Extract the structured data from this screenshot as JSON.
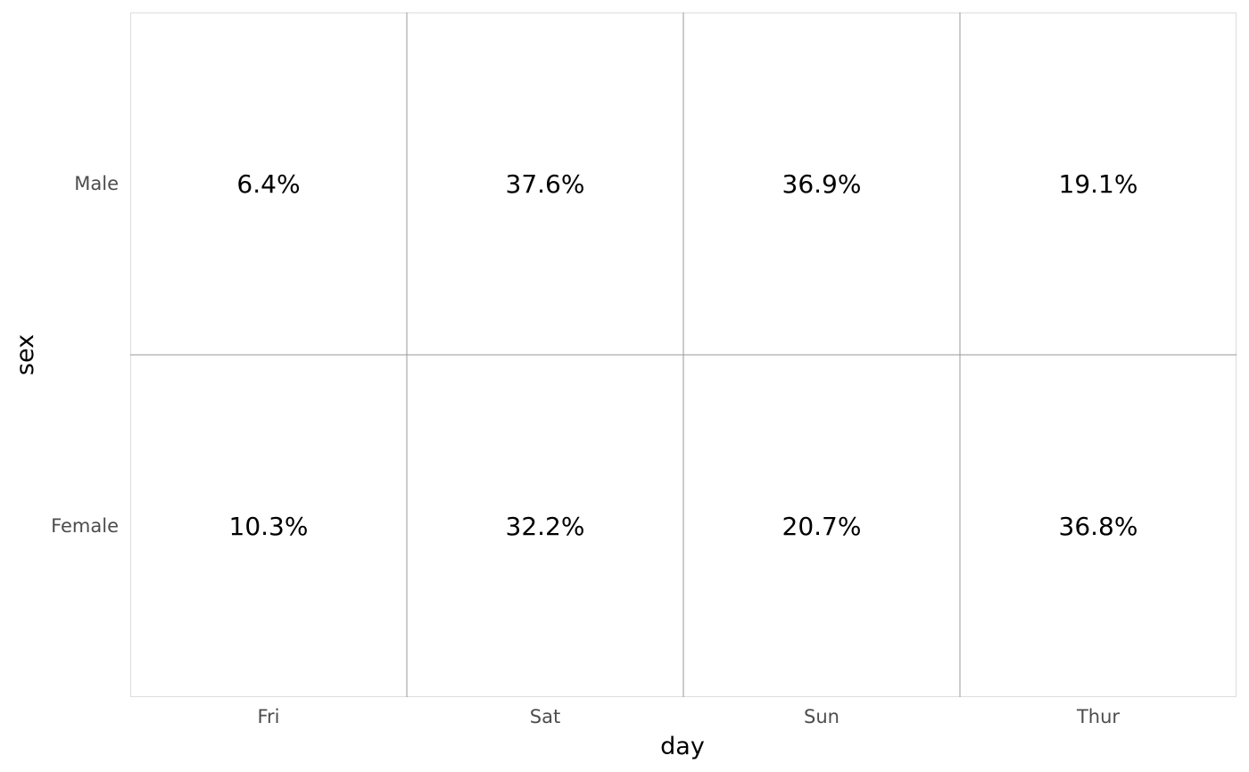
{
  "chart_data": {
    "type": "table",
    "x_categories": [
      "Fri",
      "Sat",
      "Sun",
      "Thur"
    ],
    "y_categories": [
      "Male",
      "Female"
    ],
    "xlabel": "day",
    "ylabel": "sex",
    "cells": [
      {
        "x": "Fri",
        "y": "Male",
        "label": "6.4%",
        "value": 6.4
      },
      {
        "x": "Sat",
        "y": "Male",
        "label": "37.6%",
        "value": 37.6
      },
      {
        "x": "Sun",
        "y": "Male",
        "label": "36.9%",
        "value": 36.9
      },
      {
        "x": "Thur",
        "y": "Male",
        "label": "19.1%",
        "value": 19.1
      },
      {
        "x": "Fri",
        "y": "Female",
        "label": "10.3%",
        "value": 10.3
      },
      {
        "x": "Sat",
        "y": "Female",
        "label": "32.2%",
        "value": 32.2
      },
      {
        "x": "Sun",
        "y": "Female",
        "label": "20.7%",
        "value": 20.7
      },
      {
        "x": "Thur",
        "y": "Female",
        "label": "36.8%",
        "value": 36.8
      }
    ],
    "grid": true,
    "legend": "none",
    "colors": {
      "cell_fill": "#ffffff",
      "grid_line": "#999999",
      "panel_border": "#dddddd",
      "tick_text": "#4d4d4d",
      "title_text": "#000000"
    }
  }
}
